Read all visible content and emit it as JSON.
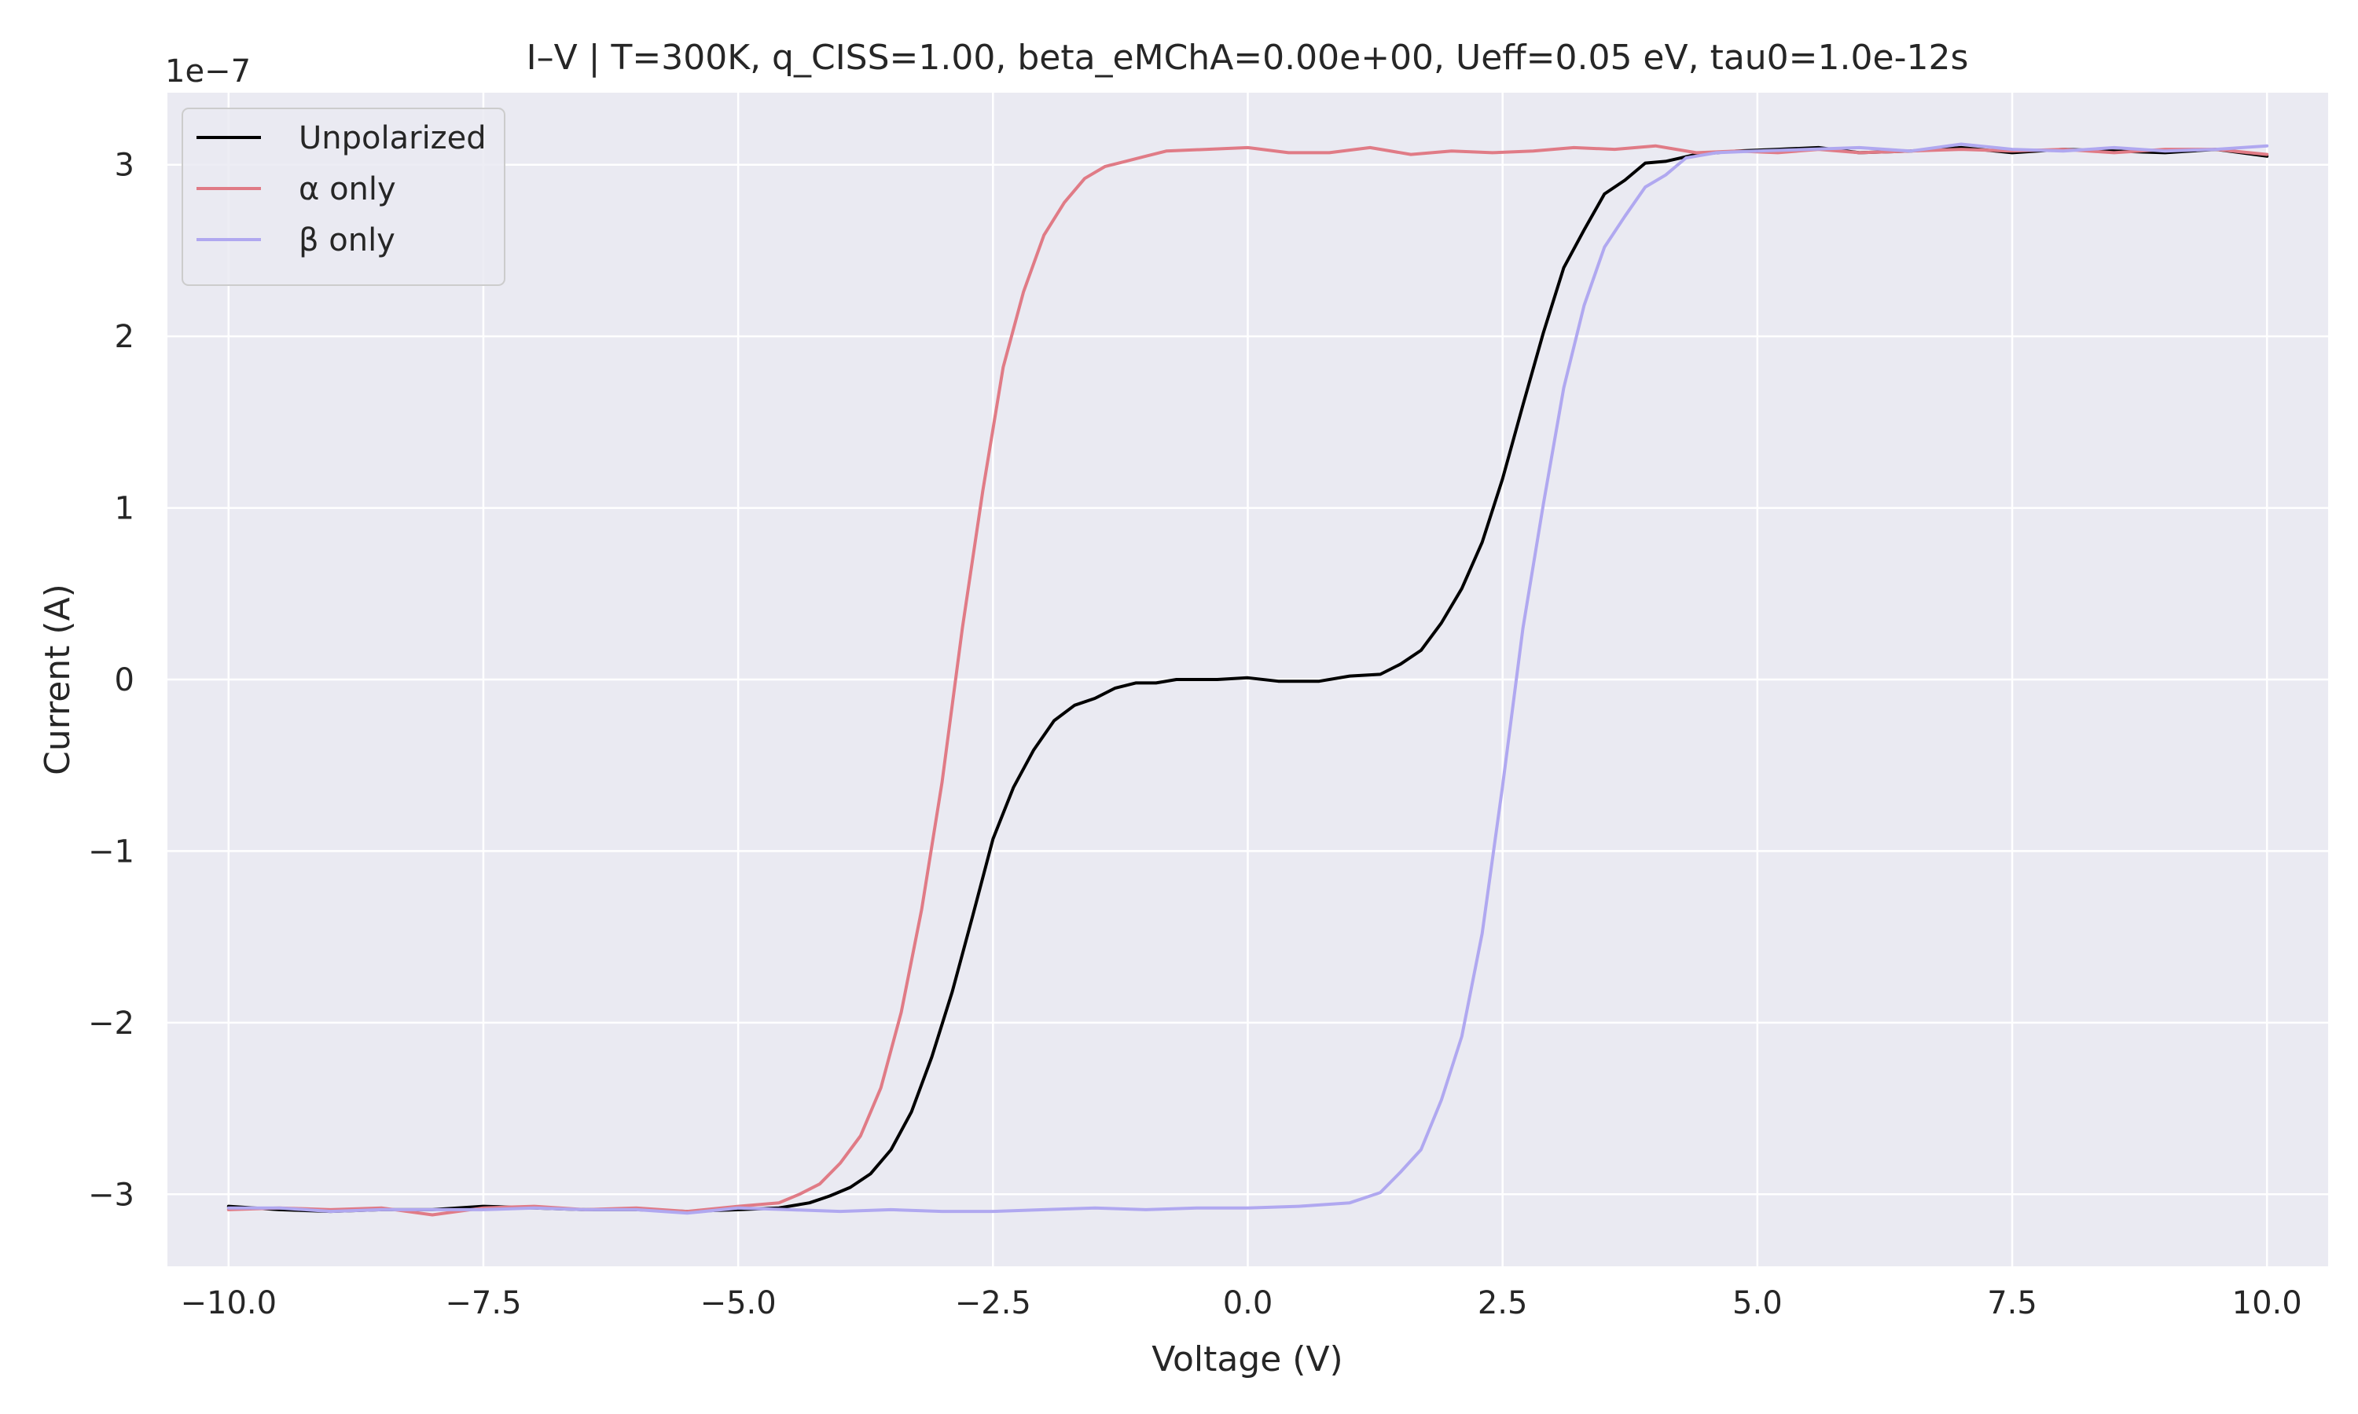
{
  "chart_data": {
    "type": "line",
    "title": "I–V | T=300K, q_CISS=1.00, beta_eMChA=0.00e+00, Ueff=0.05 eV, tau0=1.0e-12s",
    "xlabel": "Voltage (V)",
    "ylabel": "Current (A)",
    "y_offset_label": "1e−7",
    "xlim": [
      -10.6,
      10.6
    ],
    "ylim": [
      -3.42,
      3.42
    ],
    "grid": true,
    "legend_position": "top-left",
    "x_ticks": [
      -10.0,
      -7.5,
      -5.0,
      -2.5,
      0.0,
      2.5,
      5.0,
      7.5,
      10.0
    ],
    "x_tick_labels": [
      "−10.0",
      "−7.5",
      "−5.0",
      "−2.5",
      "0.0",
      "2.5",
      "5.0",
      "7.5",
      "10.0"
    ],
    "y_ticks": [
      -3,
      -2,
      -1,
      0,
      1,
      2,
      3
    ],
    "y_tick_labels": [
      "−3",
      "−2",
      "−1",
      "0",
      "1",
      "2",
      "3"
    ],
    "colors": {
      "background": "#eaeaf2",
      "grid": "#ffffff",
      "unpolarized": "#000000",
      "alpha": "#e07b86",
      "beta": "#b0a8f0"
    },
    "series": [
      {
        "name": "Unpolarized",
        "color": "#000000",
        "points": [
          [
            -10.0,
            -3.07
          ],
          [
            -9.5,
            -3.09
          ],
          [
            -9.0,
            -3.1
          ],
          [
            -8.5,
            -3.09
          ],
          [
            -8.0,
            -3.09
          ],
          [
            -7.5,
            -3.07
          ],
          [
            -7.0,
            -3.08
          ],
          [
            -6.5,
            -3.09
          ],
          [
            -6.0,
            -3.09
          ],
          [
            -5.5,
            -3.1
          ],
          [
            -5.0,
            -3.09
          ],
          [
            -4.6,
            -3.08
          ],
          [
            -4.3,
            -3.05
          ],
          [
            -4.1,
            -3.01
          ],
          [
            -3.9,
            -2.96
          ],
          [
            -3.7,
            -2.88
          ],
          [
            -3.5,
            -2.74
          ],
          [
            -3.3,
            -2.52
          ],
          [
            -3.1,
            -2.2
          ],
          [
            -2.9,
            -1.82
          ],
          [
            -2.7,
            -1.38
          ],
          [
            -2.5,
            -0.93
          ],
          [
            -2.3,
            -0.63
          ],
          [
            -2.1,
            -0.41
          ],
          [
            -1.9,
            -0.24
          ],
          [
            -1.7,
            -0.15
          ],
          [
            -1.5,
            -0.11
          ],
          [
            -1.3,
            -0.05
          ],
          [
            -1.1,
            -0.02
          ],
          [
            -0.9,
            -0.02
          ],
          [
            -0.7,
            0.0
          ],
          [
            -0.3,
            0.0
          ],
          [
            0.0,
            0.01
          ],
          [
            0.3,
            -0.01
          ],
          [
            0.7,
            -0.01
          ],
          [
            1.0,
            0.02
          ],
          [
            1.3,
            0.03
          ],
          [
            1.5,
            0.09
          ],
          [
            1.7,
            0.17
          ],
          [
            1.9,
            0.33
          ],
          [
            2.1,
            0.53
          ],
          [
            2.3,
            0.8
          ],
          [
            2.5,
            1.17
          ],
          [
            2.7,
            1.6
          ],
          [
            2.9,
            2.02
          ],
          [
            3.1,
            2.4
          ],
          [
            3.3,
            2.62
          ],
          [
            3.5,
            2.83
          ],
          [
            3.7,
            2.91
          ],
          [
            3.9,
            3.01
          ],
          [
            4.1,
            3.02
          ],
          [
            4.4,
            3.06
          ],
          [
            4.8,
            3.08
          ],
          [
            5.2,
            3.09
          ],
          [
            5.6,
            3.1
          ],
          [
            6.0,
            3.07
          ],
          [
            6.5,
            3.08
          ],
          [
            7.0,
            3.1
          ],
          [
            7.5,
            3.07
          ],
          [
            8.0,
            3.09
          ],
          [
            8.5,
            3.08
          ],
          [
            9.0,
            3.07
          ],
          [
            9.5,
            3.09
          ],
          [
            10.0,
            3.05
          ]
        ]
      },
      {
        "name": "α only",
        "color": "#e07b86",
        "points": [
          [
            -10.0,
            -3.09
          ],
          [
            -9.5,
            -3.08
          ],
          [
            -9.0,
            -3.09
          ],
          [
            -8.5,
            -3.08
          ],
          [
            -8.0,
            -3.12
          ],
          [
            -7.5,
            -3.08
          ],
          [
            -7.0,
            -3.07
          ],
          [
            -6.5,
            -3.09
          ],
          [
            -6.0,
            -3.08
          ],
          [
            -5.5,
            -3.1
          ],
          [
            -5.0,
            -3.07
          ],
          [
            -4.6,
            -3.05
          ],
          [
            -4.4,
            -3.0
          ],
          [
            -4.2,
            -2.94
          ],
          [
            -4.0,
            -2.82
          ],
          [
            -3.8,
            -2.66
          ],
          [
            -3.6,
            -2.38
          ],
          [
            -3.4,
            -1.94
          ],
          [
            -3.2,
            -1.34
          ],
          [
            -3.0,
            -0.6
          ],
          [
            -2.8,
            0.3
          ],
          [
            -2.6,
            1.1
          ],
          [
            -2.4,
            1.82
          ],
          [
            -2.2,
            2.26
          ],
          [
            -2.0,
            2.59
          ],
          [
            -1.8,
            2.78
          ],
          [
            -1.6,
            2.92
          ],
          [
            -1.4,
            2.99
          ],
          [
            -1.2,
            3.02
          ],
          [
            -1.0,
            3.05
          ],
          [
            -0.8,
            3.08
          ],
          [
            -0.4,
            3.09
          ],
          [
            0.0,
            3.1
          ],
          [
            0.4,
            3.07
          ],
          [
            0.8,
            3.07
          ],
          [
            1.2,
            3.1
          ],
          [
            1.6,
            3.06
          ],
          [
            2.0,
            3.08
          ],
          [
            2.4,
            3.07
          ],
          [
            2.8,
            3.08
          ],
          [
            3.2,
            3.1
          ],
          [
            3.6,
            3.09
          ],
          [
            4.0,
            3.11
          ],
          [
            4.4,
            3.07
          ],
          [
            4.8,
            3.08
          ],
          [
            5.2,
            3.07
          ],
          [
            5.6,
            3.09
          ],
          [
            6.0,
            3.07
          ],
          [
            6.5,
            3.08
          ],
          [
            7.0,
            3.09
          ],
          [
            7.5,
            3.08
          ],
          [
            8.0,
            3.09
          ],
          [
            8.5,
            3.07
          ],
          [
            9.0,
            3.09
          ],
          [
            9.5,
            3.09
          ],
          [
            10.0,
            3.06
          ]
        ]
      },
      {
        "name": "β only",
        "color": "#b0a8f0",
        "points": [
          [
            -10.0,
            -3.08
          ],
          [
            -9.5,
            -3.08
          ],
          [
            -9.0,
            -3.1
          ],
          [
            -8.5,
            -3.09
          ],
          [
            -8.0,
            -3.09
          ],
          [
            -7.5,
            -3.09
          ],
          [
            -7.0,
            -3.08
          ],
          [
            -6.5,
            -3.09
          ],
          [
            -6.0,
            -3.09
          ],
          [
            -5.5,
            -3.11
          ],
          [
            -5.0,
            -3.08
          ],
          [
            -4.5,
            -3.09
          ],
          [
            -4.0,
            -3.1
          ],
          [
            -3.5,
            -3.09
          ],
          [
            -3.0,
            -3.1
          ],
          [
            -2.5,
            -3.1
          ],
          [
            -2.0,
            -3.09
          ],
          [
            -1.5,
            -3.08
          ],
          [
            -1.0,
            -3.09
          ],
          [
            -0.5,
            -3.08
          ],
          [
            0.0,
            -3.08
          ],
          [
            0.5,
            -3.07
          ],
          [
            1.0,
            -3.05
          ],
          [
            1.3,
            -2.99
          ],
          [
            1.5,
            -2.87
          ],
          [
            1.7,
            -2.74
          ],
          [
            1.9,
            -2.45
          ],
          [
            2.1,
            -2.08
          ],
          [
            2.3,
            -1.48
          ],
          [
            2.5,
            -0.62
          ],
          [
            2.7,
            0.3
          ],
          [
            2.9,
            1.02
          ],
          [
            3.1,
            1.7
          ],
          [
            3.3,
            2.18
          ],
          [
            3.5,
            2.52
          ],
          [
            3.7,
            2.7
          ],
          [
            3.9,
            2.87
          ],
          [
            4.1,
            2.94
          ],
          [
            4.3,
            3.04
          ],
          [
            4.6,
            3.07
          ],
          [
            5.0,
            3.08
          ],
          [
            5.5,
            3.09
          ],
          [
            6.0,
            3.1
          ],
          [
            6.5,
            3.08
          ],
          [
            7.0,
            3.12
          ],
          [
            7.5,
            3.09
          ],
          [
            8.0,
            3.08
          ],
          [
            8.5,
            3.1
          ],
          [
            9.0,
            3.08
          ],
          [
            9.5,
            3.09
          ],
          [
            10.0,
            3.11
          ]
        ]
      }
    ]
  }
}
